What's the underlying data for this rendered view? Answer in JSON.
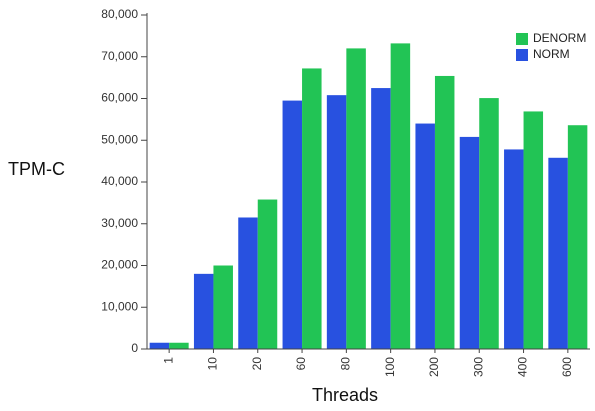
{
  "chart_data": {
    "type": "bar",
    "title": "",
    "xlabel": "Threads",
    "ylabel": "TPM-C",
    "categories": [
      "1",
      "10",
      "20",
      "60",
      "80",
      "100",
      "200",
      "300",
      "400",
      "600"
    ],
    "series": [
      {
        "name": "NORM",
        "color": "#2851e0",
        "values": [
          1500,
          18000,
          31500,
          59500,
          60800,
          62500,
          54000,
          50800,
          47800,
          45800
        ]
      },
      {
        "name": "DENORM",
        "color": "#22c455",
        "values": [
          1500,
          20000,
          35800,
          67200,
          72000,
          73200,
          65400,
          60100,
          56900,
          53600
        ]
      }
    ],
    "legend_order": [
      "DENORM",
      "NORM"
    ],
    "ylim": [
      0,
      80000
    ],
    "yticks": [
      "0",
      "10,000",
      "20,000",
      "30,000",
      "40,000",
      "50,000",
      "60,000",
      "70,000",
      "80,000"
    ],
    "legend_position": "top-right",
    "grid": false
  }
}
